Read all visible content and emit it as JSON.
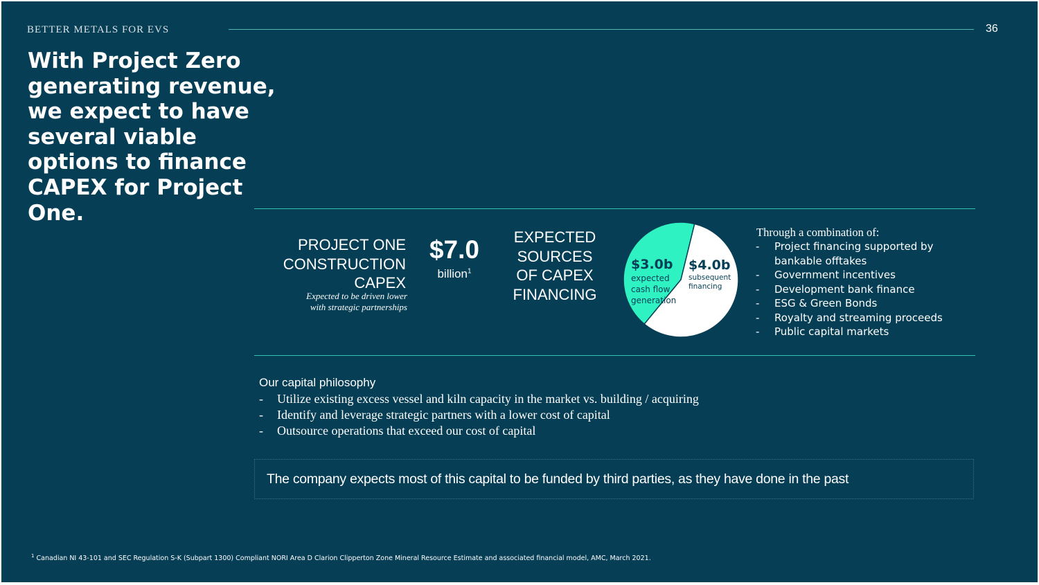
{
  "header": {
    "label": "BETTER METALS FOR EVS",
    "page_number": "36"
  },
  "headline": "With Project Zero generating revenue, we expect to have several viable options to finance CAPEX for Project One.",
  "capex": {
    "title_lines": [
      "PROJECT ONE",
      "CONSTRUCTION",
      "CAPEX"
    ],
    "note_lines": [
      "Expected to be driven lower",
      "with strategic partnerships"
    ],
    "value": "$7.0",
    "unit": "billion",
    "unit_footnote": "1"
  },
  "sources": {
    "title_lines": [
      "EXPECTED",
      "SOURCES",
      "OF CAPEX",
      "FINANCING"
    ]
  },
  "chart_data": {
    "type": "pie",
    "slices": [
      {
        "label": "$3.0b",
        "description": "expected cash flow generation",
        "value": 3.0,
        "color": "#2ff2c3"
      },
      {
        "label": "$4.0b",
        "description": "subsequent financing",
        "value": 4.0,
        "color": "#ffffff"
      }
    ],
    "desc_lines": {
      "slice1": [
        "expected",
        "cash flow",
        "generation"
      ],
      "slice2": [
        "subsequent",
        "financing"
      ]
    }
  },
  "combination": {
    "title": "Through a combination of:",
    "items": [
      [
        "Project financing supported by",
        "bankable offtakes"
      ],
      [
        "Government incentives"
      ],
      [
        "Development bank finance"
      ],
      [
        "ESG & Green Bonds"
      ],
      [
        "Royalty and streaming proceeds"
      ],
      [
        "Public capital markets"
      ]
    ]
  },
  "philosophy": {
    "title": "Our capital philosophy",
    "items": [
      "Utilize existing excess vessel and kiln capacity in the market vs. building / acquiring",
      "Identify and leverage strategic partners with a lower cost of capital",
      "Outsource operations that exceed our cost of capital"
    ]
  },
  "callout": "The company expects most of this capital to be funded by third parties, as they have done in the past",
  "footnote": {
    "marker": "1",
    "text": "Canadian NI 43-101 and SEC Regulation S-K (Subpart 1300) Compliant NORI Area D Clarion Clipperton Zone Mineral Resource Estimate and associated financial model, AMC, March 2021."
  },
  "colors": {
    "background": "#063e55",
    "accent": "#2fc4ad",
    "pie_highlight": "#2ff2c3",
    "text": "#ffffff"
  },
  "bullet": "-"
}
